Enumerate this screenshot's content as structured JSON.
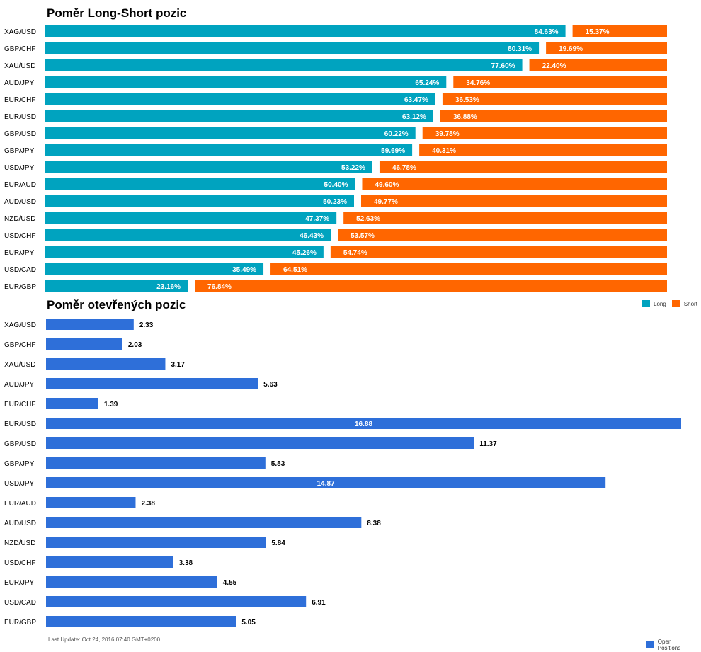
{
  "colors": {
    "long": "#00a3bf",
    "short": "#ff6600",
    "open": "#2e6fd9"
  },
  "chart_data": [
    {
      "type": "bar",
      "title": "Poměr Long-Short pozic",
      "stacked": true,
      "orientation": "horizontal",
      "categories": [
        "XAG/USD",
        "GBP/CHF",
        "XAU/USD",
        "AUD/JPY",
        "EUR/CHF",
        "EUR/USD",
        "GBP/USD",
        "GBP/JPY",
        "USD/JPY",
        "EUR/AUD",
        "AUD/USD",
        "NZD/USD",
        "USD/CHF",
        "EUR/JPY",
        "USD/CAD",
        "EUR/GBP"
      ],
      "series": [
        {
          "name": "Long",
          "values": [
            84.63,
            80.31,
            77.6,
            65.24,
            63.47,
            63.12,
            60.22,
            59.69,
            53.22,
            50.4,
            50.23,
            47.37,
            46.43,
            45.26,
            35.49,
            23.16
          ],
          "labels": [
            "84.63%",
            "80.31%",
            "77.60%",
            "65.24%",
            "63.47%",
            "63.12%",
            "60.22%",
            "59.69%",
            "53.22%",
            "50.40%",
            "50.23%",
            "47.37%",
            "46.43%",
            "45.26%",
            "35.49%",
            "23.16%"
          ]
        },
        {
          "name": "Short",
          "values": [
            15.37,
            19.69,
            22.4,
            34.76,
            36.53,
            36.88,
            39.78,
            40.31,
            46.78,
            49.6,
            49.77,
            52.63,
            53.57,
            54.74,
            64.51,
            76.84
          ],
          "labels": [
            "15.37%",
            "19.69%",
            "22.40%",
            "34.76%",
            "36.53%",
            "36.88%",
            "39.78%",
            "40.31%",
            "46.78%",
            "49.60%",
            "49.77%",
            "52.63%",
            "53.57%",
            "54.74%",
            "64.51%",
            "76.84%"
          ]
        }
      ],
      "legend": {
        "position": "bottom-right",
        "items": [
          "Long",
          "Short"
        ]
      }
    },
    {
      "type": "bar",
      "title": "Poměr otevřených pozic",
      "orientation": "horizontal",
      "categories": [
        "XAG/USD",
        "GBP/CHF",
        "XAU/USD",
        "AUD/JPY",
        "EUR/CHF",
        "EUR/USD",
        "GBP/USD",
        "GBP/JPY",
        "USD/JPY",
        "EUR/AUD",
        "AUD/USD",
        "NZD/USD",
        "USD/CHF",
        "EUR/JPY",
        "USD/CAD",
        "EUR/GBP"
      ],
      "series": [
        {
          "name": "Open Positions",
          "values": [
            2.33,
            2.03,
            3.17,
            5.63,
            1.39,
            16.88,
            11.37,
            5.83,
            14.87,
            2.38,
            8.38,
            5.84,
            3.38,
            4.55,
            6.91,
            5.05
          ],
          "labels": [
            "2.33",
            "2.03",
            "3.17",
            "5.63",
            "1.39",
            "16.88",
            "11.37",
            "5.83",
            "14.87",
            "2.38",
            "8.38",
            "5.84",
            "3.38",
            "4.55",
            "6.91",
            "5.05"
          ]
        }
      ],
      "xlim": [
        0,
        16.88
      ],
      "legend": {
        "position": "bottom-right",
        "items": [
          "Open Positions"
        ]
      }
    }
  ],
  "footer": {
    "last_update": "Last Update: Oct 24, 2016 07:40 GMT+0200"
  }
}
